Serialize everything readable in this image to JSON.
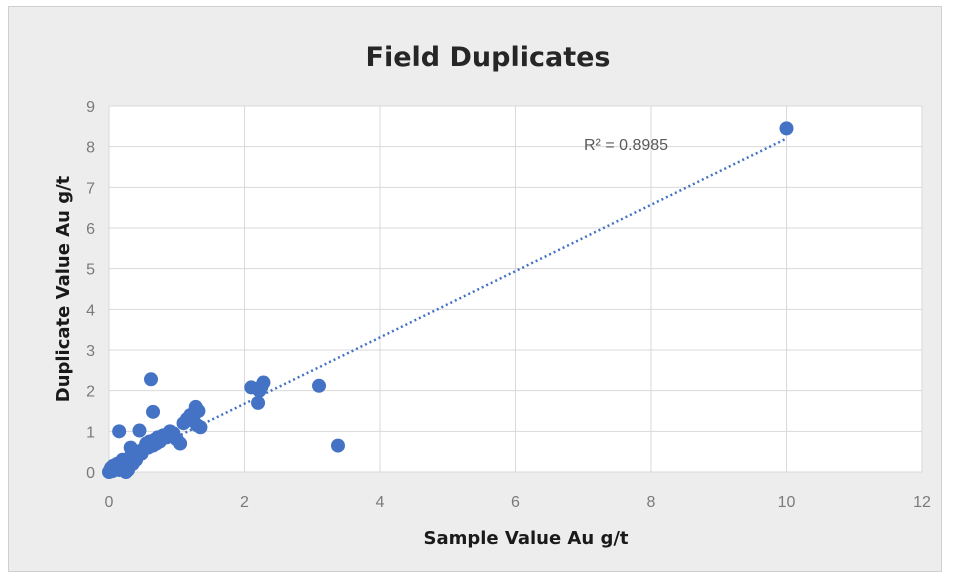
{
  "chart_data": {
    "type": "scatter",
    "title": "Field Duplicates",
    "xlabel": "Sample Value Au g/t",
    "ylabel": "Duplicate Value Au g/t",
    "xlim": [
      0,
      12
    ],
    "ylim": [
      0,
      9
    ],
    "xticks": [
      0,
      2,
      4,
      6,
      8,
      10,
      12
    ],
    "yticks": [
      0,
      1,
      2,
      3,
      4,
      5,
      6,
      7,
      8,
      9
    ],
    "grid": true,
    "marker_color": "#4472c4",
    "trendline": {
      "style": "dotted-linear",
      "color": "#4472c4",
      "x_range": [
        0,
        10
      ],
      "y_range": [
        0.05,
        8.2
      ],
      "label": "R² = 0.8985"
    },
    "x": [
      0.0,
      0.02,
      0.03,
      0.05,
      0.06,
      0.08,
      0.1,
      0.12,
      0.15,
      0.18,
      0.2,
      0.22,
      0.25,
      0.28,
      0.3,
      0.32,
      0.35,
      0.38,
      0.4,
      0.42,
      0.45,
      0.48,
      0.5,
      0.55,
      0.58,
      0.6,
      0.62,
      0.65,
      0.65,
      0.68,
      0.7,
      0.72,
      0.75,
      0.8,
      0.85,
      0.9,
      0.95,
      1.0,
      1.05,
      1.1,
      1.15,
      1.2,
      1.25,
      1.28,
      1.3,
      1.32,
      1.35,
      2.1,
      2.2,
      2.22,
      2.25,
      2.28,
      3.1,
      3.38,
      10.0,
      0.15,
      0.2,
      0.25,
      0.35,
      0.42
    ],
    "y": [
      0.0,
      0.05,
      0.1,
      0.02,
      0.15,
      0.05,
      0.1,
      0.2,
      0.05,
      0.25,
      0.3,
      0.1,
      0.2,
      0.05,
      0.35,
      0.6,
      0.4,
      0.45,
      0.3,
      0.5,
      1.02,
      0.45,
      0.55,
      0.7,
      0.6,
      0.75,
      2.28,
      0.65,
      1.48,
      0.8,
      0.7,
      0.85,
      0.75,
      0.9,
      0.85,
      1.0,
      0.95,
      0.8,
      0.7,
      1.2,
      1.3,
      1.4,
      1.25,
      1.6,
      1.15,
      1.5,
      1.1,
      2.08,
      1.7,
      2.0,
      2.1,
      2.2,
      2.12,
      0.65,
      8.45,
      1.0,
      0.15,
      0.0,
      0.2,
      0.4
    ]
  }
}
